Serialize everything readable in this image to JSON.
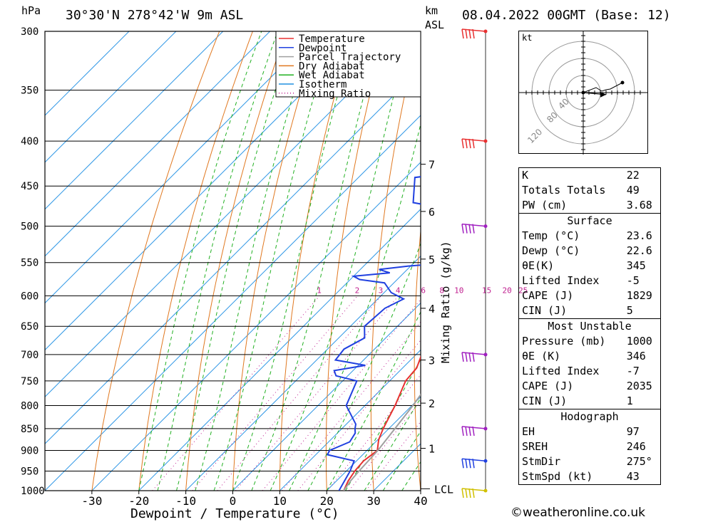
{
  "header": {
    "unit_p": "hPa",
    "location": "30°30'N  278°42'W  9m  ASL",
    "unit_km": "km",
    "unit_asl": "ASL",
    "date": "08.04.2022  00GMT  (Base: 12)"
  },
  "legend": [
    {
      "label": "Temperature",
      "color": "#e83030",
      "style": "solid"
    },
    {
      "label": "Dewpoint",
      "color": "#2040e0",
      "style": "solid"
    },
    {
      "label": "Parcel Trajectory",
      "color": "#a0a0a0",
      "style": "solid"
    },
    {
      "label": "Dry Adiabat",
      "color": "#e07820",
      "style": "solid"
    },
    {
      "label": "Wet Adiabat",
      "color": "#20b020",
      "style": "solid"
    },
    {
      "label": "Isotherm",
      "color": "#2090e0",
      "style": "solid"
    },
    {
      "label": "Mixing Ratio",
      "color": "#c02090",
      "style": "dotted"
    }
  ],
  "chart_data": {
    "type": "line",
    "chart_kind": "skew-T log-p",
    "xlabel": "Dewpoint / Temperature (°C)",
    "ylabel": "hPa",
    "right_label": "Mixing Ratio (g/kg)",
    "xlim": [
      -40,
      40
    ],
    "ylim": [
      1000,
      300
    ],
    "pressure_ticks": [
      300,
      350,
      400,
      450,
      500,
      550,
      600,
      650,
      700,
      750,
      800,
      850,
      900,
      950,
      1000
    ],
    "temp_ticks": [
      -30,
      -20,
      -10,
      0,
      10,
      20,
      30,
      40
    ],
    "km_ticks": [
      {
        "label": "7",
        "p": 425
      },
      {
        "label": "6",
        "p": 481
      },
      {
        "label": "5",
        "p": 545
      },
      {
        "label": "4",
        "p": 620
      },
      {
        "label": "3",
        "p": 710
      },
      {
        "label": "2",
        "p": 795
      },
      {
        "label": "1",
        "p": 895
      }
    ],
    "lcl": {
      "label": "LCL",
      "p": 995
    },
    "mixing_ratio_labels": [
      "1",
      "2",
      "3",
      "4",
      "6",
      "8",
      "10",
      "15",
      "20",
      "25"
    ],
    "series": [
      {
        "name": "Temperature",
        "points": [
          [
            1000,
            23.6
          ],
          [
            975,
            22.5
          ],
          [
            950,
            21.8
          ],
          [
            925,
            21.5
          ],
          [
            900,
            22.2
          ],
          [
            875,
            20.2
          ],
          [
            850,
            18.8
          ],
          [
            800,
            16.4
          ],
          [
            750,
            13.4
          ],
          [
            725,
            13.0
          ],
          [
            700,
            11.2
          ],
          [
            650,
            7.5
          ],
          [
            600,
            4.2
          ],
          [
            575,
            2.0
          ],
          [
            560,
            1.5
          ],
          [
            550,
            0.2
          ],
          [
            525,
            -1.5
          ],
          [
            500,
            -3.8
          ],
          [
            480,
            -6.0
          ],
          [
            460,
            -9.5
          ],
          [
            440,
            -12.8
          ],
          [
            420,
            -16.5
          ],
          [
            400,
            -20.0
          ],
          [
            380,
            -23.8
          ],
          [
            350,
            -30.5
          ],
          [
            320,
            -36.5
          ],
          [
            300,
            -40.5
          ]
        ]
      },
      {
        "name": "Dewpoint",
        "points": [
          [
            1000,
            22.6
          ],
          [
            950,
            20.8
          ],
          [
            925,
            19.5
          ],
          [
            910,
            12.5
          ],
          [
            900,
            12.0
          ],
          [
            880,
            14.5
          ],
          [
            860,
            13.8
          ],
          [
            850,
            12.8
          ],
          [
            840,
            12.0
          ],
          [
            800,
            6.0
          ],
          [
            750,
            3.0
          ],
          [
            740,
            -2.5
          ],
          [
            730,
            -4.0
          ],
          [
            720,
            1.5
          ],
          [
            710,
            -6.0
          ],
          [
            690,
            -6.5
          ],
          [
            670,
            -4.5
          ],
          [
            650,
            -7.0
          ],
          [
            620,
            -6.5
          ],
          [
            605,
            -4.5
          ],
          [
            595,
            -8.5
          ],
          [
            580,
            -12.0
          ],
          [
            575,
            -18.0
          ],
          [
            570,
            -20.0
          ],
          [
            565,
            -13.0
          ],
          [
            560,
            -16.0
          ],
          [
            555,
            -10.5
          ],
          [
            550,
            -2.0
          ],
          [
            530,
            -4.0
          ],
          [
            500,
            -5.5
          ],
          [
            490,
            -6.0
          ],
          [
            480,
            -12.0
          ],
          [
            470,
            -23.0
          ],
          [
            440,
            -28.0
          ],
          [
            430,
            -15.0
          ],
          [
            425,
            -27.5
          ],
          [
            420,
            -27.5
          ],
          [
            410,
            -18.0
          ],
          [
            400,
            -27.0
          ],
          [
            390,
            -26.0
          ],
          [
            380,
            -30.5
          ],
          [
            350,
            -34.0
          ],
          [
            300,
            -44.0
          ]
        ]
      },
      {
        "name": "Parcel Trajectory",
        "points": [
          [
            1000,
            23.6
          ],
          [
            975,
            23.0
          ],
          [
            950,
            22.7
          ],
          [
            900,
            22.3
          ],
          [
            850,
            21.3
          ],
          [
            800,
            20.2
          ],
          [
            750,
            18.7
          ],
          [
            700,
            16.9
          ],
          [
            650,
            14.6
          ],
          [
            600,
            11.9
          ],
          [
            550,
            8.5
          ],
          [
            500,
            4.3
          ],
          [
            450,
            -0.8
          ],
          [
            400,
            -7.6
          ],
          [
            365,
            -13.0
          ]
        ]
      }
    ],
    "wind_barbs": [
      {
        "p": 300,
        "color": "#e83030"
      },
      {
        "p": 400,
        "color": "#e83030"
      },
      {
        "p": 500,
        "color": "#a020c0"
      },
      {
        "p": 700,
        "color": "#a020c0"
      },
      {
        "p": 850,
        "color": "#a020c0"
      },
      {
        "p": 925,
        "color": "#2040e0"
      },
      {
        "p": 1000,
        "color": "#d0c000"
      }
    ],
    "hodograph": {
      "unit": "kt",
      "ring_labels": [
        "40",
        "80",
        "120"
      ],
      "points": [
        [
          0,
          0
        ],
        [
          18,
          -7
        ],
        [
          26,
          -2
        ],
        [
          32,
          -4
        ],
        [
          38,
          -5
        ],
        [
          55,
          -14
        ]
      ],
      "storm_motion": {
        "dir": 275,
        "speed": 43
      }
    }
  },
  "indices": {
    "rows": [
      {
        "label": "K",
        "value": "22"
      },
      {
        "label": "Totals Totals",
        "value": "49"
      },
      {
        "label": "PW (cm)",
        "value": "3.68"
      }
    ],
    "surface": {
      "title": "Surface",
      "rows": [
        {
          "label": "Temp (°C)",
          "value": "23.6"
        },
        {
          "label": "Dewp (°C)",
          "value": "22.6"
        },
        {
          "label": "θE(K)",
          "value": "345"
        },
        {
          "label": "Lifted Index",
          "value": "-5"
        },
        {
          "label": "CAPE (J)",
          "value": "1829"
        },
        {
          "label": "CIN (J)",
          "value": "5"
        }
      ]
    },
    "most_unstable": {
      "title": "Most Unstable",
      "rows": [
        {
          "label": "Pressure (mb)",
          "value": "1000"
        },
        {
          "label": "θE (K)",
          "value": "346"
        },
        {
          "label": "Lifted Index",
          "value": "-7"
        },
        {
          "label": "CAPE (J)",
          "value": "2035"
        },
        {
          "label": "CIN (J)",
          "value": "1"
        }
      ]
    },
    "hodograph": {
      "title": "Hodograph",
      "rows": [
        {
          "label": "EH",
          "value": "97"
        },
        {
          "label": "SREH",
          "value": "246"
        },
        {
          "label": "StmDir",
          "value": "275°"
        },
        {
          "label": "StmSpd (kt)",
          "value": "43"
        }
      ]
    }
  },
  "footer": {
    "text": "©weatheronline.co.uk"
  }
}
